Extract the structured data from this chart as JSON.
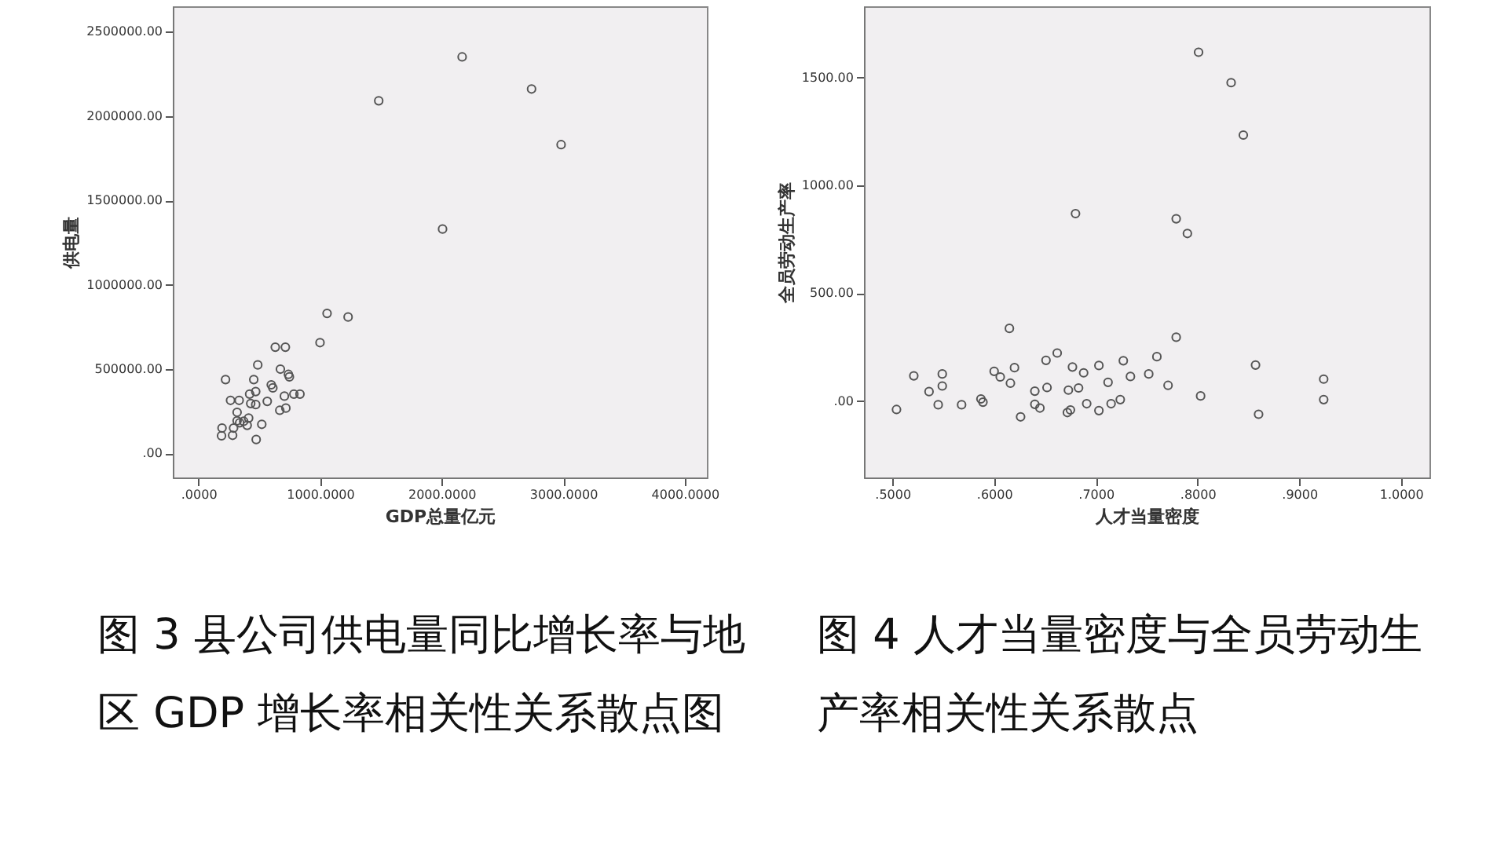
{
  "chart_data": [
    {
      "type": "scatter",
      "title": "图 3 县公司供电量同比增长率与地区 GDP 增长率相关性关系散点图",
      "xlabel": "GDP总量亿元",
      "ylabel": "供电量",
      "marker": "circle",
      "grid": false,
      "xlim": [
        -211,
        4182
      ],
      "ylim": [
        -142000,
        2650000
      ],
      "xticks": [
        {
          "value": 0,
          "label": ".0000"
        },
        {
          "value": 1000,
          "label": "1000.0000"
        },
        {
          "value": 2000,
          "label": "2000.0000"
        },
        {
          "value": 3000,
          "label": "3000.0000"
        },
        {
          "value": 4000,
          "label": "4000.0000"
        }
      ],
      "yticks": [
        {
          "value": 0,
          "label": ".00"
        },
        {
          "value": 500000,
          "label": "500000.00"
        },
        {
          "value": 1000000,
          "label": "1000000.00"
        },
        {
          "value": 1500000,
          "label": "1500000.00"
        },
        {
          "value": 2000000,
          "label": "2000000.00"
        },
        {
          "value": 2500000,
          "label": "2500000.00"
        }
      ],
      "series": [
        {
          "color": "#555555",
          "x": [
            2169,
            1483,
            2740,
            2983,
            2008,
            1058,
            1231,
            1000,
            632,
            715,
            488,
            674,
            740,
            748,
            223,
            455,
            599,
            612,
            471,
            421,
            707,
            785,
            835,
            264,
            335,
            566,
            430,
            471,
            669,
            719,
            318,
            521,
            194,
            289,
            339,
            372,
            413,
            401,
            190,
            281,
            475,
            318
          ],
          "values": [
            2350000,
            2090000,
            2160000,
            1830000,
            1330000,
            830000,
            809000,
            657000,
            630000,
            630000,
            525000,
            500000,
            469000,
            454000,
            438000,
            438000,
            407000,
            389000,
            367000,
            352000,
            340000,
            352000,
            352000,
            315000,
            315000,
            309000,
            296000,
            290000,
            256000,
            269000,
            244000,
            173000,
            151000,
            151000,
            182000,
            191000,
            210000,
            167000,
            105000,
            108000,
            83000,
            194000
          ]
        }
      ]
    },
    {
      "type": "scatter",
      "title": "图 4 人才当量密度与全员劳动生产率相关性关系散点",
      "xlabel": "人才当量密度",
      "ylabel": "全员劳动生产率",
      "marker": "circle",
      "grid": false,
      "xlim": [
        0.472,
        1.028
      ],
      "ylim": [
        -354,
        1830
      ],
      "xticks": [
        {
          "value": 0.5,
          "label": ".5000"
        },
        {
          "value": 0.6,
          "label": ".6000"
        },
        {
          "value": 0.7,
          "label": ".7000"
        },
        {
          "value": 0.8,
          "label": ".8000"
        },
        {
          "value": 0.9,
          "label": ".9000"
        },
        {
          "value": 1.0,
          "label": "1.0000"
        }
      ],
      "yticks": [
        {
          "value": 0,
          "label": ".00"
        },
        {
          "value": 500,
          "label": "500.00"
        },
        {
          "value": 1000,
          "label": "1000.00"
        },
        {
          "value": 1500,
          "label": "1500.00"
        }
      ],
      "series": [
        {
          "color": "#555555",
          "x": [
            0.801,
            0.833,
            0.845,
            0.68,
            0.779,
            0.79,
            0.615,
            0.779,
            0.662,
            0.76,
            0.651,
            0.727,
            0.62,
            0.677,
            0.703,
            0.857,
            0.6,
            0.549,
            0.521,
            0.688,
            0.734,
            0.752,
            0.606,
            0.712,
            0.616,
            0.549,
            0.771,
            0.652,
            0.683,
            0.924,
            0.536,
            0.64,
            0.673,
            0.587,
            0.724,
            0.803,
            0.924,
            0.545,
            0.568,
            0.589,
            0.64,
            0.645,
            0.691,
            0.715,
            0.504,
            0.675,
            0.672,
            0.703,
            0.626,
            0.86
          ],
          "values": [
            1617,
            1476,
            1233,
            869,
            845,
            777,
            337,
            296,
            223,
            206,
            189,
            187,
            155,
            158,
            165,
            167,
            138,
            126,
            117,
            131,
            114,
            126,
            112,
            87,
            83,
            70,
            73,
            63,
            61,
            102,
            44,
            46,
            51,
            10,
            7,
            24,
            7,
            -17,
            -17,
            -5,
            -15,
            -32,
            -12,
            -12,
            -39,
            -41,
            -53,
            -44,
            -73,
            -61
          ]
        }
      ]
    }
  ]
}
